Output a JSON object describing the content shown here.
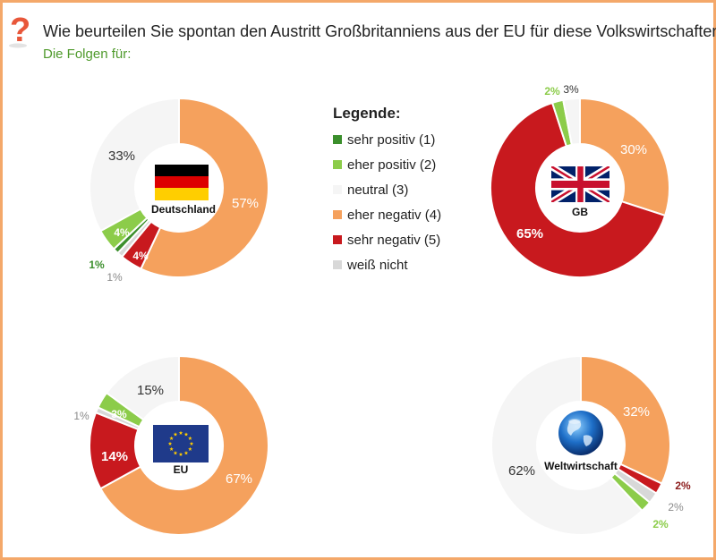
{
  "header": {
    "title": "Wie beurteilen Sie spontan den Austritt Großbritanniens aus der EU für diese Volkswirtschaften?",
    "subtitle": "Die Folgen für:"
  },
  "legend": {
    "title": "Legende:",
    "items": [
      {
        "label": "sehr positiv (1)",
        "color": "#3b8f2c"
      },
      {
        "label": "eher positiv (2)",
        "color": "#8ccc4a"
      },
      {
        "label": "neutral (3)",
        "color": "#f5f5f5"
      },
      {
        "label": "eher negativ (4)",
        "color": "#f5a15d"
      },
      {
        "label": "sehr negativ (5)",
        "color": "#c8191e"
      },
      {
        "label": "weiß nicht",
        "color": "#d8d8d8"
      }
    ]
  },
  "colors": {
    "frame": "#f4a86a",
    "subtitle": "#4f9a2c",
    "question_icon": "#e8573a"
  },
  "chart_data": [
    {
      "type": "pie",
      "title": "Deutschland",
      "center_icon": "german-flag",
      "slices": [
        {
          "category": "eher negativ (4)",
          "value": 57,
          "label": "57%"
        },
        {
          "category": "sehr negativ (5)",
          "value": 4,
          "label": "4%"
        },
        {
          "category": "weiß nicht",
          "value": 1,
          "label": "1%"
        },
        {
          "category": "sehr positiv (1)",
          "value": 1,
          "label": "1%"
        },
        {
          "category": "eher positiv (2)",
          "value": 4,
          "label": "4%"
        },
        {
          "category": "neutral (3)",
          "value": 33,
          "label": "33%"
        }
      ]
    },
    {
      "type": "pie",
      "title": "GB",
      "center_icon": "uk-flag",
      "slices": [
        {
          "category": "eher negativ (4)",
          "value": 30,
          "label": "30%"
        },
        {
          "category": "sehr negativ (5)",
          "value": 65,
          "label": "65%"
        },
        {
          "category": "eher positiv (2)",
          "value": 2,
          "label": "2%"
        },
        {
          "category": "neutral (3)",
          "value": 3,
          "label": "3%"
        }
      ]
    },
    {
      "type": "pie",
      "title": "EU",
      "center_icon": "eu-flag",
      "slices": [
        {
          "category": "eher negativ (4)",
          "value": 67,
          "label": "67%"
        },
        {
          "category": "sehr negativ (5)",
          "value": 14,
          "label": "14%"
        },
        {
          "category": "weiß nicht",
          "value": 1,
          "label": "1%"
        },
        {
          "category": "eher positiv (2)",
          "value": 3,
          "label": "3%"
        },
        {
          "category": "neutral (3)",
          "value": 15,
          "label": "15%"
        }
      ]
    },
    {
      "type": "pie",
      "title": "Weltwirtschaft",
      "center_icon": "globe",
      "slices": [
        {
          "category": "eher negativ (4)",
          "value": 32,
          "label": "32%"
        },
        {
          "category": "sehr negativ (5)",
          "value": 2,
          "label": "2%"
        },
        {
          "category": "weiß nicht",
          "value": 2,
          "label": "2%"
        },
        {
          "category": "eher positiv (2)",
          "value": 2,
          "label": "2%"
        },
        {
          "category": "neutral (3)",
          "value": 62,
          "label": "62%"
        }
      ]
    }
  ]
}
